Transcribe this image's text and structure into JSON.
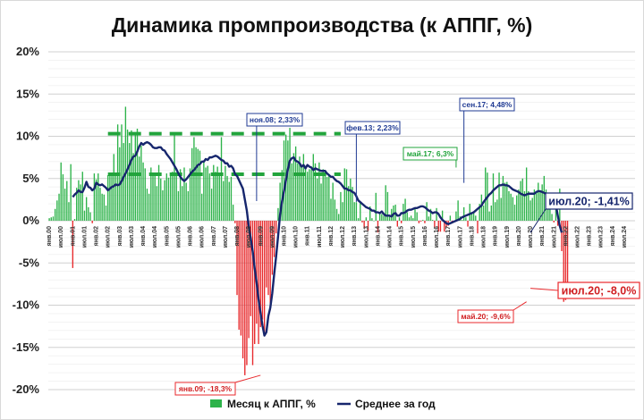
{
  "chart_data": {
    "type": "bar+line",
    "title": "Динамика промпроизводства (к АППГ, %)",
    "ylim": [
      -20,
      20
    ],
    "ytick_labels": [
      "20%",
      "15%",
      "10%",
      "5%",
      "0%",
      "-5%",
      "-10%",
      "-15%",
      "-20%"
    ],
    "y_major": [
      20,
      15,
      10,
      5,
      0,
      -5,
      -10,
      -15,
      -20
    ],
    "grid": true,
    "legend_position": "bottom",
    "x_tick_labels": [
      "янв.00",
      "июл.00",
      "янв.01",
      "июл.01",
      "янв.02",
      "июл.02",
      "янв.03",
      "июл.03",
      "янв.04",
      "июл.04",
      "янв.05",
      "июл.05",
      "янв.06",
      "июл.06",
      "янв.07",
      "июл.07",
      "янв.08",
      "июл.08",
      "янв.09",
      "июл.09",
      "янв.10",
      "июл.10",
      "янв.11",
      "июл.11",
      "янв.12",
      "июл.12",
      "янв.13",
      "июл.13",
      "янв.14",
      "июл.14",
      "янв.15",
      "июл.15",
      "янв.16",
      "июл.16",
      "янв.17",
      "июл.17",
      "янв.18",
      "июл.18",
      "янв.19",
      "июл.19",
      "янв.20",
      "июл.20",
      "янв.21",
      "июл.21",
      "янв.22",
      "июл.22",
      "янв.23",
      "июл.23",
      "янв.24",
      "июл.24"
    ],
    "series": [
      {
        "name": "Месяц к АППГ, %",
        "kind": "bar",
        "color": "#2db34a",
        "negative_color": "#e8292c",
        "start": "янв.00",
        "values": [
          0.3,
          0.4,
          0.5,
          1.4,
          2.4,
          3.2,
          6.9,
          5.5,
          3.8,
          4.7,
          2.2,
          6.7,
          -5.6,
          0.2,
          3.9,
          4.8,
          4.3,
          5.8,
          1.2,
          2.8,
          1.6,
          1.0,
          -0.3,
          5.6,
          4.9,
          5.6,
          3.9,
          3.2,
          3.1,
          1.8,
          5.4,
          5.3,
          5.4,
          7.9,
          5.6,
          11.4,
          8.7,
          11.4,
          9.2,
          13.5,
          10.8,
          9.2,
          10.7,
          8.0,
          10.3,
          10.9,
          7.6,
          8.9,
          6.9,
          6.2,
          3.8,
          3.2,
          6.3,
          5.6,
          5.4,
          4.1,
          6.6,
          5.0,
          3.6,
          4.8,
          5.6,
          5.1,
          5.4,
          5.8,
          10.3,
          5.5,
          3.5,
          6.1,
          4.1,
          6.3,
          4.5,
          3.5,
          6.2,
          8.6,
          9.9,
          8.7,
          8.5,
          8.3,
          3.2,
          7.0,
          6.3,
          6.5,
          5.6,
          3.8,
          6.6,
          5.8,
          6.4,
          5.7,
          9.9,
          4.7,
          6.5,
          5.3,
          4.6,
          5.2,
          1.9,
          -0.3,
          -8.8,
          -12.9,
          -13.6,
          -16.3,
          -18.3,
          -17.1,
          -13.9,
          -11.3,
          -17.1,
          -14.6,
          -12.2,
          -14.6,
          -12.6,
          -11.7,
          -13.2,
          -7.9,
          -8.8,
          -10.6,
          -6.4,
          -4.3,
          -1.5,
          1.5,
          4.5,
          6.0,
          9.5,
          10.2,
          9.5,
          11.0,
          6.8,
          8.0,
          8.8,
          6.8,
          7.6,
          6.6,
          7.9,
          6.5,
          5.8,
          6.1,
          6.1,
          7.9,
          6.8,
          5.0,
          6.9,
          4.4,
          6.1,
          5.7,
          5.2,
          5.5,
          2.6,
          4.5,
          2.5,
          1.4,
          0.8,
          3.4,
          2.2,
          6.2,
          6.1,
          4.1,
          5.0,
          4.0,
          2.2,
          2.2,
          0.3,
          2.1,
          -0.2,
          -0.9,
          0.4,
          -1.2,
          1.7,
          0.3,
          0.0,
          3.3,
          -1.4,
          0.8,
          0.8,
          0.6,
          4.2,
          3.4,
          0.6,
          1.4,
          1.8,
          1.9,
          -0.7,
          0.4,
          -0.3,
          2.0,
          2.6,
          1.0,
          0.4,
          0.6,
          0.3,
          1.4,
          1.0,
          -0.3,
          -0.1,
          0.1,
          -0.3,
          2.2,
          0.5,
          1.4,
          0.1,
          -0.8,
          1.5,
          -1.3,
          -1.3,
          1.2,
          -1.3,
          -0.8,
          -0.6,
          0.6,
          -0.3,
          -0.2,
          1.1,
          2.4,
          0.5,
          0.1,
          1.6,
          0.4,
          -0.7,
          2.0,
          1.0,
          1.1,
          0.6,
          -1.5,
          2.0,
          3.1,
          1.8,
          6.3,
          5.7,
          1.1,
          1.8,
          5.6,
          2.2,
          2.5,
          5.7,
          2.7,
          5.3,
          4.5,
          4.6,
          3.5,
          3.2,
          2.8,
          1.9,
          3.0,
          3.7,
          4.7,
          5.0,
          3.5,
          6.3,
          3.5,
          2.4,
          2.7,
          3.7,
          3.3,
          4.5,
          3.6,
          4.3,
          5.3,
          3.7,
          3.0,
          1.6,
          0.8,
          -0.2,
          1.9,
          -0.6,
          3.8,
          -3.6,
          -9.6,
          -9.4,
          -8.0
        ]
      },
      {
        "name": "Среднее за год",
        "kind": "line",
        "color": "#16266d",
        "start": "янв.01",
        "values": [
          2.8,
          3.1,
          3.3,
          3.6,
          3.4,
          3.4,
          3.9,
          4.6,
          4.0,
          3.9,
          3.6,
          3.8,
          4.5,
          4.3,
          4.2,
          4.3,
          4.1,
          3.9,
          3.6,
          3.8,
          4.0,
          4.1,
          4.3,
          4.2,
          4.3,
          4.7,
          5.2,
          5.6,
          6.1,
          6.6,
          7.2,
          7.6,
          7.7,
          8.2,
          8.8,
          9.2,
          9.0,
          9.2,
          9.3,
          9.2,
          9.0,
          8.7,
          8.6,
          8.6,
          8.7,
          8.7,
          8.4,
          8.3,
          7.9,
          7.6,
          7.3,
          6.9,
          6.5,
          6.1,
          5.6,
          5.2,
          4.9,
          4.7,
          4.9,
          5.2,
          5.5,
          5.8,
          6.0,
          6.3,
          6.6,
          6.7,
          7.0,
          7.0,
          7.3,
          7.2,
          7.5,
          7.5,
          7.6,
          7.7,
          7.6,
          7.4,
          7.2,
          7.1,
          6.8,
          6.8,
          6.4,
          6.5,
          6.2,
          5.5,
          5.3,
          4.8,
          4.3,
          3.8,
          2.5,
          1.2,
          -0.7,
          -2.1,
          -3.6,
          -5.6,
          -7.3,
          -9.3,
          -10.9,
          -12.4,
          -13.6,
          -13.2,
          -11.3,
          -10.3,
          -8.6,
          -6.3,
          -4.2,
          -1.8,
          0.7,
          2.3,
          3.5,
          4.8,
          6.1,
          7.1,
          7.4,
          7.5,
          7.1,
          7.0,
          6.8,
          6.4,
          6.6,
          6.2,
          6.6,
          6.4,
          6.3,
          6.0,
          6.2,
          6.1,
          6.0,
          5.9,
          5.9,
          5.9,
          5.6,
          5.4,
          5.2,
          5.2,
          4.9,
          4.7,
          4.6,
          4.4,
          4.1,
          3.8,
          3.8,
          3.6,
          3.6,
          3.4,
          3.3,
          2.9,
          2.4,
          2.2,
          2.0,
          1.8,
          1.6,
          1.5,
          1.4,
          1.2,
          1.2,
          1.0,
          1.0,
          0.9,
          1.1,
          0.8,
          0.6,
          0.6,
          0.6,
          0.5,
          0.8,
          0.9,
          0.6,
          0.6,
          0.9,
          0.9,
          1.0,
          1.2,
          1.3,
          1.3,
          1.4,
          1.5,
          1.5,
          1.6,
          1.7,
          1.7,
          1.6,
          1.4,
          1.2,
          1.1,
          0.9,
          1.0,
          1.0,
          0.8,
          0.4,
          0.1,
          -0.1,
          -0.3,
          -0.4,
          -0.3,
          -0.2,
          -0.1,
          0.0,
          0.1,
          0.2,
          0.4,
          0.5,
          0.6,
          0.7,
          0.8,
          0.9,
          1.0,
          1.2,
          1.4,
          1.6,
          1.8,
          2.2,
          2.5,
          2.8,
          3.1,
          3.3,
          3.6,
          3.8,
          4.0,
          4.2,
          4.2,
          4.3,
          4.2,
          4.2,
          4.1,
          3.9,
          3.7,
          3.6,
          3.5,
          3.4,
          3.2,
          3.1,
          3.0,
          3.1,
          3.2,
          3.2,
          3.2,
          3.2,
          3.4,
          3.5,
          3.5,
          3.4,
          3.3,
          3.2,
          3.2,
          3.1,
          2.9,
          2.6,
          1.9,
          0.6,
          -0.6,
          -1.41
        ]
      }
    ],
    "reference_lines": [
      {
        "from": "июл.02",
        "to": "июн.12",
        "value": 10.3,
        "color": "#22a43c"
      },
      {
        "from": "июл.02",
        "to": "июн.12",
        "value": 5.5,
        "color": "#22a43c"
      }
    ],
    "annotations": [
      {
        "text": "ноя.08; 2,33%",
        "at": "ноя.08",
        "value": 2.33,
        "style": "navy"
      },
      {
        "text": "фев.13; 2,23%",
        "at": "фев.13",
        "value": 2.23,
        "style": "navy"
      },
      {
        "text": "сен.17; 4,48%",
        "at": "сен.17",
        "value": 4.48,
        "style": "navy"
      },
      {
        "text": "май.17; 6,3%",
        "at": "май.17",
        "value": 6.3,
        "style": "green"
      },
      {
        "text": "июл.20; -1,41%",
        "at": "июл.20",
        "value": -1.41,
        "style": "navy-big"
      },
      {
        "text": "янв.09; -18,3%",
        "at": "янв.09",
        "value": -18.3,
        "style": "red"
      },
      {
        "text": "май.20; -9,6%",
        "at": "май.20",
        "value": -9.6,
        "style": "red"
      },
      {
        "text": "июл.20; -8,0%",
        "at": "июл.20",
        "value": -8.0,
        "style": "red-big"
      }
    ]
  }
}
